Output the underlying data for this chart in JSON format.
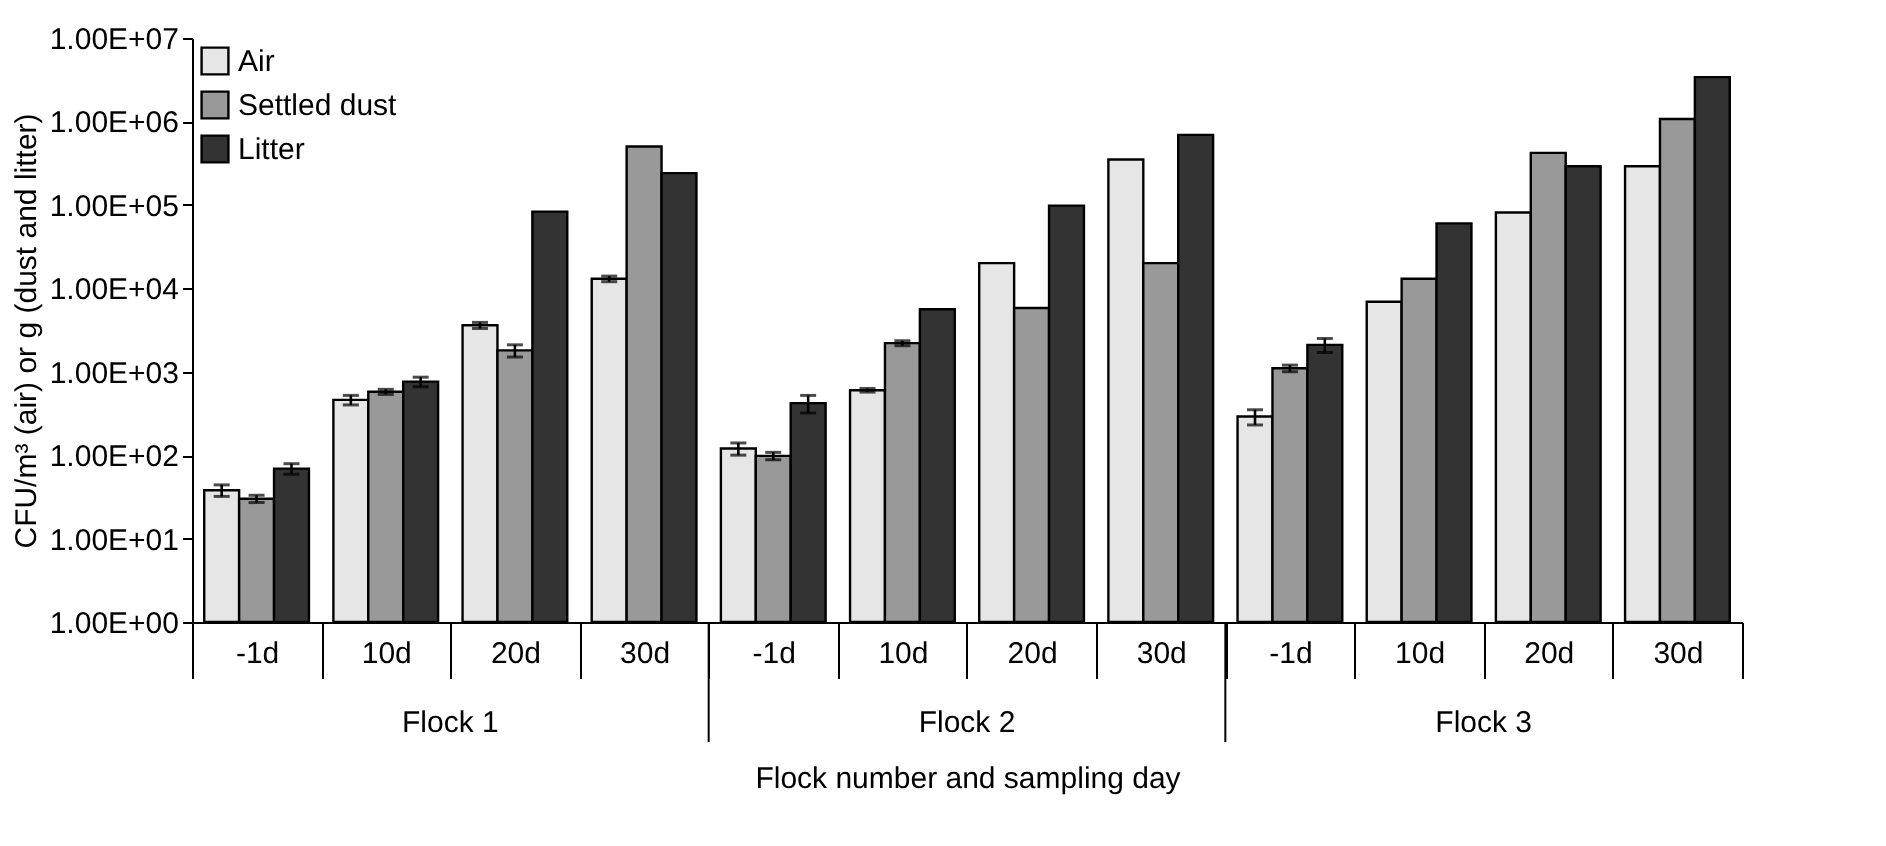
{
  "chart_data": {
    "type": "bar",
    "categories": [
      "-1d",
      "10d",
      "20d",
      "30d",
      "-1d",
      "10d",
      "20d",
      "30d",
      "-1d",
      "10d",
      "20d",
      "30d"
    ],
    "series": [
      {
        "name": "Air",
        "color": "#e6e6e6",
        "values": [
          38,
          460,
          3600,
          13000,
          120,
          600,
          20000,
          350000,
          290,
          6900,
          81000,
          290000
        ],
        "errors": [
          6,
          60,
          300,
          1000,
          20,
          30,
          null,
          null,
          60,
          null,
          null,
          null
        ]
      },
      {
        "name": "Settled dust",
        "color": "#999999",
        "values": [
          30,
          575,
          1800,
          500000,
          98,
          2200,
          5800,
          20000,
          1100,
          13000,
          420000,
          1070000
        ],
        "errors": [
          3,
          40,
          300,
          null,
          10,
          150,
          null,
          null,
          100,
          null,
          null,
          null
        ]
      },
      {
        "name": "Litter",
        "color": "#333333",
        "values": [
          69,
          760,
          83000,
          240000,
          420,
          5600,
          98000,
          690000,
          2100,
          60000,
          290000,
          3400000
        ],
        "errors": [
          10,
          100,
          null,
          null,
          100,
          null,
          null,
          null,
          400,
          null,
          null,
          null
        ]
      }
    ],
    "xlabel": "Flock number and sampling day",
    "ylabel": "CFU/m³ (air) or g (dust and litter)",
    "annotations": [
      "Flock 1",
      "Flock 2",
      "Flock 3"
    ],
    "log": true,
    "ylim": [
      1,
      10000000
    ],
    "yticks": [
      {
        "value": 1,
        "label": "1.00E+00"
      },
      {
        "value": 10,
        "label": "1.00E+01"
      },
      {
        "value": 100,
        "label": "1.00E+02"
      },
      {
        "value": 1000,
        "label": "1.00E+03"
      },
      {
        "value": 10000,
        "label": "1.00E+04"
      },
      {
        "value": 100000,
        "label": "1.00E+05"
      },
      {
        "value": 1000000,
        "label": "1.00E+06"
      },
      {
        "value": 10000000,
        "label": "1.00E+07"
      }
    ],
    "grid": false,
    "legend": "top left"
  }
}
